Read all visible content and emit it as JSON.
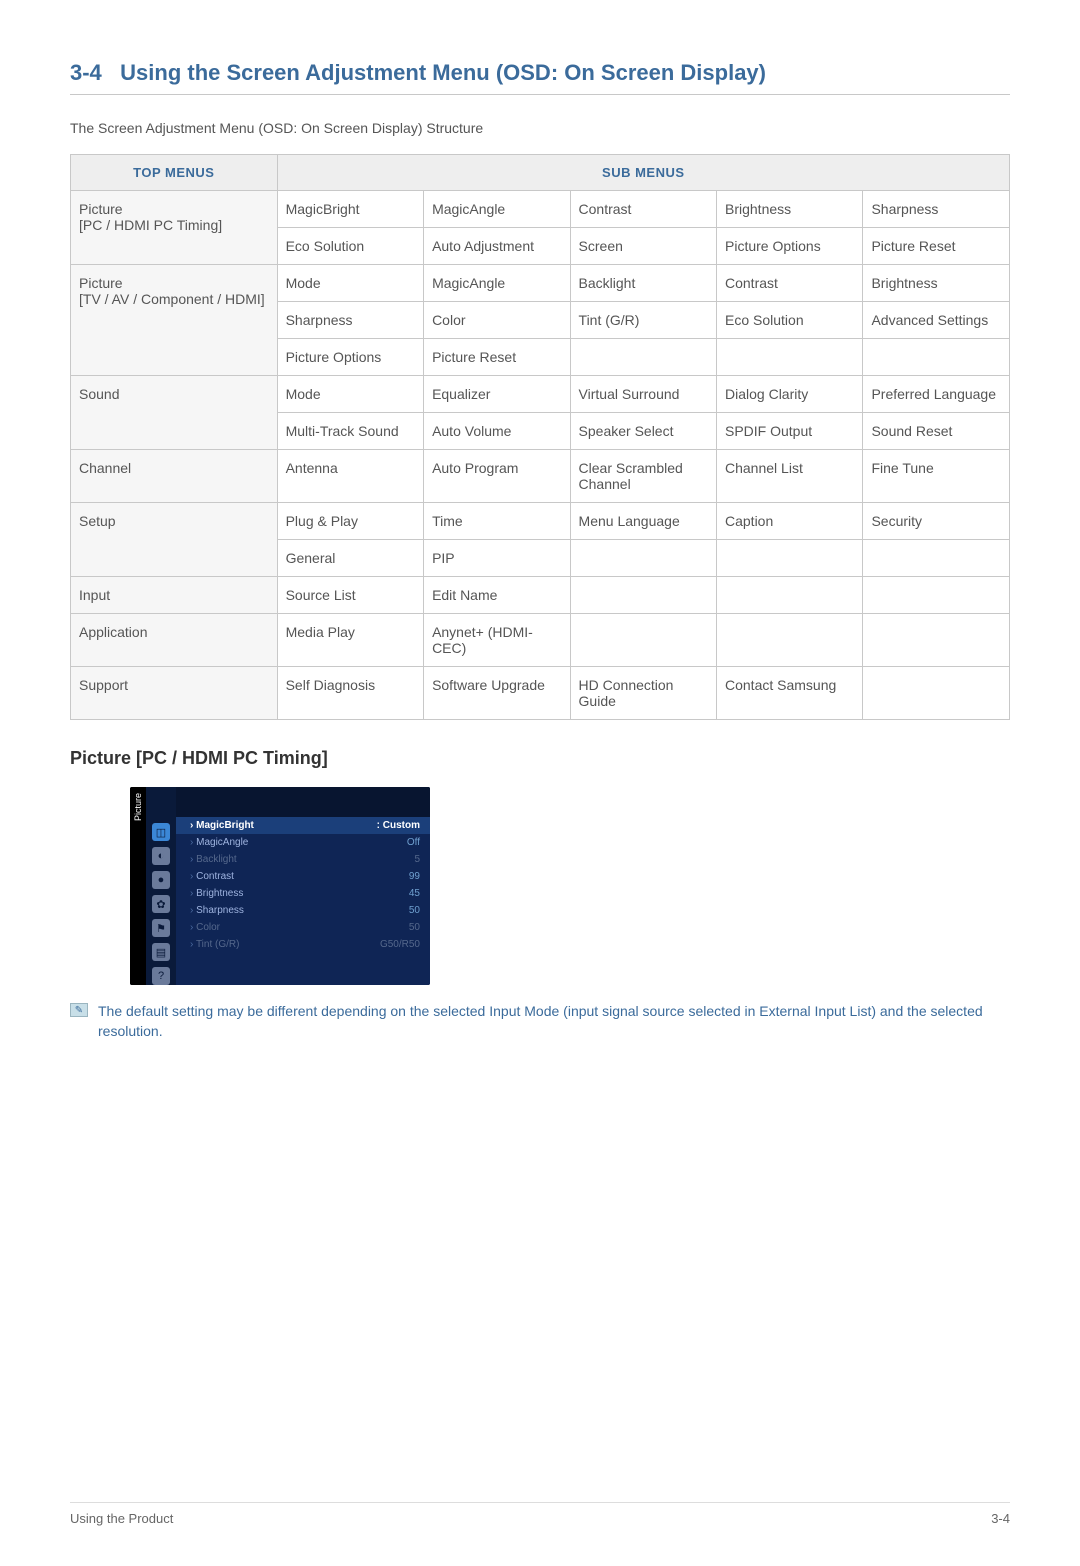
{
  "section": {
    "number": "3-4",
    "title": "Using the Screen Adjustment Menu (OSD: On Screen Display)"
  },
  "intro": "The Screen Adjustment Menu (OSD: On Screen Display) Structure",
  "tableHeaders": {
    "top": "Top Menus",
    "sub": "Sub Menus"
  },
  "menuTable": {
    "columns": {
      "topWidth": "22%",
      "subCols": 5
    },
    "rows": [
      {
        "top": "Picture\n[PC / HDMI PC Timing]",
        "subRows": [
          [
            "MagicBright",
            "MagicAngle",
            "Contrast",
            "Brightness",
            "Sharpness"
          ],
          [
            "Eco Solution",
            "Auto Adjustment",
            "Screen",
            "Picture Options",
            "Picture Reset"
          ]
        ]
      },
      {
        "top": "Picture\n[TV / AV / Component / HDMI]",
        "subRows": [
          [
            "Mode",
            "MagicAngle",
            "Backlight",
            "Contrast",
            "Brightness"
          ],
          [
            "Sharpness",
            "Color",
            "Tint (G/R)",
            "Eco Solution",
            "Advanced Settings"
          ],
          [
            "Picture Options",
            "Picture Reset",
            "",
            "",
            ""
          ]
        ]
      },
      {
        "top": "Sound",
        "subRows": [
          [
            "Mode",
            "Equalizer",
            "Virtual Surround",
            "Dialog Clarity",
            "Preferred Language"
          ],
          [
            "Multi-Track Sound",
            "Auto Volume",
            "Speaker Select",
            "SPDIF Output",
            "Sound Reset"
          ]
        ]
      },
      {
        "top": "Channel",
        "subRows": [
          [
            "Antenna",
            "Auto Program",
            "Clear Scrambled Channel",
            "Channel List",
            "Fine Tune"
          ]
        ]
      },
      {
        "top": "Setup",
        "subRows": [
          [
            "Plug & Play",
            "Time",
            "Menu Language",
            "Caption",
            "Security"
          ],
          [
            "General",
            "PIP",
            "",
            "",
            ""
          ]
        ]
      },
      {
        "top": "Input",
        "subRows": [
          [
            "Source List",
            "Edit Name",
            "",
            "",
            ""
          ]
        ]
      },
      {
        "top": "Application",
        "subRows": [
          [
            "Media Play",
            "Anynet+ (HDMI-CEC)",
            "",
            "",
            ""
          ]
        ]
      },
      {
        "top": "Support",
        "subRows": [
          [
            "Self Diagnosis",
            "Software Upgrade",
            "HD Connection Guide",
            "Contact Samsung",
            ""
          ]
        ]
      }
    ]
  },
  "subheading": "Picture [PC / HDMI PC Timing]",
  "osdMock": {
    "vtab": "Picture",
    "icons": [
      "◫",
      "◐",
      "●",
      "✿",
      "⚑",
      "▤",
      "?"
    ],
    "rows": [
      {
        "label": "MagicBright",
        "value": ": Custom",
        "sel": true
      },
      {
        "label": "MagicAngle",
        "value": "Off"
      },
      {
        "label": "Backlight",
        "value": "5",
        "dim": true
      },
      {
        "label": "Contrast",
        "value": "99"
      },
      {
        "label": "Brightness",
        "value": "45"
      },
      {
        "label": "Sharpness",
        "value": "50"
      },
      {
        "label": "Color",
        "value": "50",
        "dim": true
      },
      {
        "label": "Tint (G/R)",
        "value": "G50/R50",
        "dim": true
      }
    ]
  },
  "note": "The default setting may be different depending on the selected Input Mode (input signal source selected in External Input List) and the selected resolution.",
  "footer": {
    "left": "Using the Product",
    "right": "3-4"
  },
  "colors": {
    "accent": "#3b6b9b",
    "border": "#c8c8c8",
    "headerBg": "#eeeeee",
    "topmenuBg": "#f6f6f6",
    "osdBg": "#0a1a3a"
  }
}
